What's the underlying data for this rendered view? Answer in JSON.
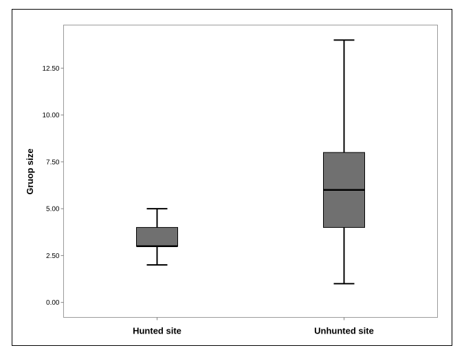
{
  "chart_data": {
    "type": "box",
    "ylabel": "Gruop size",
    "xlabel": "",
    "ylim": [
      -0.8,
      14.8
    ],
    "yticks": [
      0,
      2.5,
      5,
      7.5,
      10,
      12.5
    ],
    "ytick_labels": [
      "0.00",
      "2.50",
      "5.00",
      "7.50",
      "10.00",
      "12.50"
    ],
    "grid": false,
    "categories": [
      "Hunted site",
      "Unhunted site"
    ],
    "boxes": [
      {
        "category": "Hunted site",
        "min": 2,
        "q1": 3,
        "median": 3,
        "q3": 4,
        "max": 5
      },
      {
        "category": "Unhunted site",
        "min": 1,
        "q1": 4,
        "median": 6,
        "q3": 8,
        "max": 14
      }
    ],
    "colors": {
      "box_fill": "#707070",
      "line": "#000000",
      "frame": "#9a9a9a",
      "axis": "#808080"
    }
  }
}
